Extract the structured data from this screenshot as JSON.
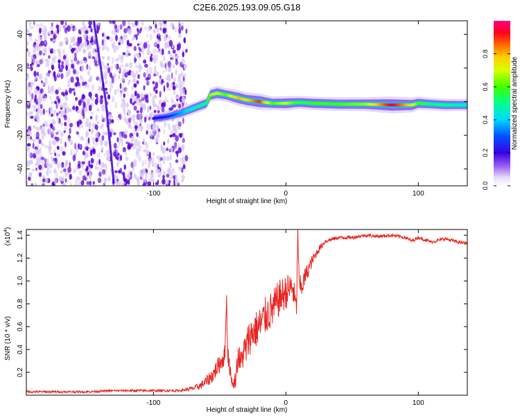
{
  "title": "C2E6.2025.193.09.05.G18",
  "colors": {
    "snr_line": "#e8231f",
    "axis": "#000000",
    "scatter_dark": "#5a00d8",
    "scatter_light": "#d8c8f4"
  },
  "chart_data": [
    {
      "type": "heatmap",
      "xlabel": "Height of straight line (km)",
      "ylabel": "Frequency (Hz)",
      "xlim": [
        -196,
        137
      ],
      "ylim": [
        -50,
        48
      ],
      "xticks": [
        -100,
        0,
        100
      ],
      "yticks": [
        -40,
        -20,
        0,
        20,
        40
      ],
      "grid": false,
      "colorbar": {
        "label": "Normalized spectral amplitude",
        "range": [
          0,
          1
        ],
        "ticks": [
          0.0,
          0.2,
          0.4,
          0.6,
          0.8
        ],
        "tick_labels": [
          "0.0",
          "0.2",
          "0.4",
          "0.6",
          "0.8"
        ],
        "colormap": "rainbow (white-violet-blue-cyan-green-yellow-red-magenta)",
        "placement": "right"
      },
      "noise_region": {
        "x_range": [
          -196,
          -75
        ],
        "y_range": [
          -50,
          48
        ]
      },
      "streak": {
        "x": [
          -145,
          -136,
          -130
        ],
        "y": [
          48,
          0,
          -48
        ]
      },
      "ridge": {
        "x": [
          -100,
          -90,
          -80,
          -70,
          -60,
          -57,
          -52,
          -45,
          -40,
          -35,
          -30,
          -20,
          -10,
          0,
          10,
          20,
          40,
          60,
          80,
          95,
          100,
          110,
          120,
          137
        ],
        "y": [
          -10,
          -9,
          -7,
          -4,
          -1,
          4,
          5,
          4,
          3,
          2,
          1,
          0,
          -1,
          -1,
          -0.5,
          -1,
          -1.5,
          -1.5,
          -2,
          -2,
          -1,
          -1.5,
          -2,
          -2
        ],
        "amplitude": [
          0.2,
          0.25,
          0.35,
          0.45,
          0.5,
          0.65,
          0.7,
          0.6,
          0.75,
          0.8,
          0.75,
          0.9,
          0.6,
          0.7,
          0.55,
          0.6,
          0.6,
          0.65,
          0.95,
          0.75,
          0.6,
          0.5,
          0.5,
          0.45
        ]
      }
    },
    {
      "type": "line",
      "xlabel": "Height of straight line (km)",
      "ylabel": "SNR (10 * v/v)",
      "y_multiplier": "(x10",
      "y_multiplier_exp": "4",
      "y_multiplier_close": ")",
      "xlim": [
        -196,
        137
      ],
      "ylim": [
        0,
        1.45
      ],
      "xticks": [
        -100,
        0,
        100
      ],
      "yticks": [
        0.2,
        0.4,
        0.6,
        0.8,
        1.0,
        1.2,
        1.4
      ],
      "ytick_labels": [
        "0.2",
        "0.4",
        "0.6",
        "0.8",
        "1.0",
        "1.2",
        "1.4"
      ],
      "grid": false,
      "series": [
        {
          "x": [
            -196,
            -150,
            -130,
            -100,
            -80,
            -70,
            -65,
            -60,
            -55,
            -50,
            -46,
            -45,
            -44,
            -42,
            -40,
            -38,
            -36,
            -34,
            -32,
            -30,
            -28,
            -25,
            -20,
            -15,
            -10,
            -5,
            0,
            5,
            8,
            9,
            10,
            12,
            15,
            20,
            25,
            30,
            40,
            50,
            60,
            70,
            80,
            90,
            95,
            100,
            110,
            120,
            130,
            137
          ],
          "y": [
            0.03,
            0.03,
            0.04,
            0.04,
            0.04,
            0.06,
            0.08,
            0.12,
            0.18,
            0.28,
            0.35,
            0.9,
            0.4,
            0.2,
            0.08,
            0.15,
            0.35,
            0.28,
            0.38,
            0.4,
            0.5,
            0.55,
            0.6,
            0.7,
            0.75,
            0.85,
            0.9,
            0.95,
            0.75,
            1.45,
            0.95,
            0.95,
            1.05,
            1.18,
            1.28,
            1.35,
            1.38,
            1.38,
            1.4,
            1.39,
            1.4,
            1.38,
            1.35,
            1.38,
            1.34,
            1.37,
            1.34,
            1.33
          ],
          "noise_amplitude": [
            0.01,
            0.01,
            0.01,
            0.01,
            0.01,
            0.02,
            0.03,
            0.05,
            0.07,
            0.08,
            0.1,
            0.15,
            0.12,
            0.06,
            0.03,
            0.08,
            0.12,
            0.12,
            0.14,
            0.15,
            0.16,
            0.16,
            0.17,
            0.17,
            0.17,
            0.16,
            0.15,
            0.14,
            0.1,
            0.05,
            0.1,
            0.1,
            0.08,
            0.05,
            0.03,
            0.02,
            0.015,
            0.015,
            0.015,
            0.015,
            0.015,
            0.015,
            0.015,
            0.015,
            0.015,
            0.015,
            0.015,
            0.015
          ]
        }
      ]
    }
  ]
}
